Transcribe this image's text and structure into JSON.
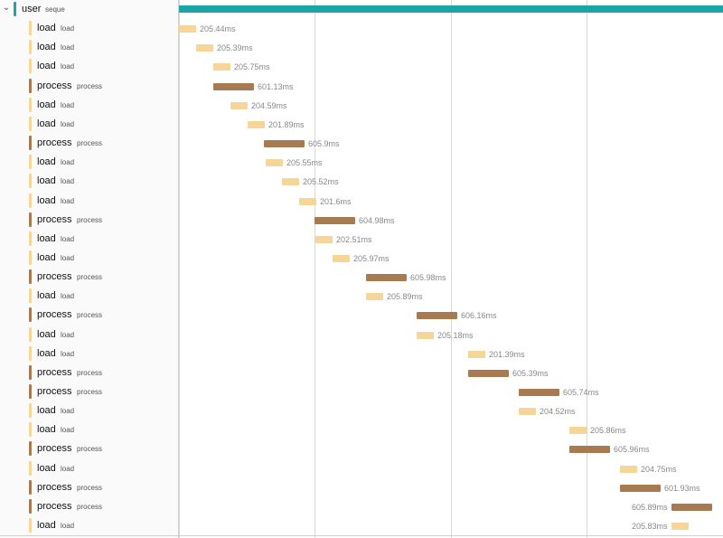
{
  "colors": {
    "user": "#1aa6a6",
    "load": "#f5d598",
    "process": "#a77a52",
    "panel_bg": "#fafafa",
    "grid": "#d8d8d8",
    "duration_text": "#888888"
  },
  "icons": {
    "expand": "chevron-down-icon"
  },
  "timeline": {
    "total_ms": 8100
  },
  "spans": [
    {
      "service": "user",
      "operation": "seque",
      "kind": "user",
      "start_ms": 0,
      "duration_ms": 8100,
      "duration_label": "",
      "expandable": true
    },
    {
      "service": "load",
      "operation": "load",
      "kind": "load",
      "start_ms": 0,
      "duration_ms": 205.44,
      "duration_label": "205.44ms"
    },
    {
      "service": "load",
      "operation": "load",
      "kind": "load",
      "start_ms": 255,
      "duration_ms": 205.39,
      "duration_label": "205.39ms"
    },
    {
      "service": "load",
      "operation": "load",
      "kind": "load",
      "start_ms": 510,
      "duration_ms": 205.75,
      "duration_label": "205.75ms"
    },
    {
      "service": "process",
      "operation": "process",
      "kind": "process",
      "start_ms": 510,
      "duration_ms": 601.13,
      "duration_label": "601.13ms"
    },
    {
      "service": "load",
      "operation": "load",
      "kind": "load",
      "start_ms": 765,
      "duration_ms": 204.59,
      "duration_label": "204.59ms"
    },
    {
      "service": "load",
      "operation": "load",
      "kind": "load",
      "start_ms": 1020,
      "duration_ms": 201.89,
      "duration_label": "201.89ms"
    },
    {
      "service": "process",
      "operation": "process",
      "kind": "process",
      "start_ms": 1270,
      "duration_ms": 605.9,
      "duration_label": "605.9ms"
    },
    {
      "service": "load",
      "operation": "load",
      "kind": "load",
      "start_ms": 1285,
      "duration_ms": 205.55,
      "duration_label": "205.55ms"
    },
    {
      "service": "load",
      "operation": "load",
      "kind": "load",
      "start_ms": 1540,
      "duration_ms": 205.52,
      "duration_label": "205.52ms"
    },
    {
      "service": "load",
      "operation": "load",
      "kind": "load",
      "start_ms": 1795,
      "duration_ms": 201.6,
      "duration_label": "201.6ms"
    },
    {
      "service": "process",
      "operation": "process",
      "kind": "process",
      "start_ms": 2020,
      "duration_ms": 604.98,
      "duration_label": "604.98ms"
    },
    {
      "service": "load",
      "operation": "load",
      "kind": "load",
      "start_ms": 2030,
      "duration_ms": 202.51,
      "duration_label": "202.51ms"
    },
    {
      "service": "load",
      "operation": "load",
      "kind": "load",
      "start_ms": 2285,
      "duration_ms": 205.97,
      "duration_label": "205.97ms"
    },
    {
      "service": "process",
      "operation": "process",
      "kind": "process",
      "start_ms": 2780,
      "duration_ms": 605.98,
      "duration_label": "605.98ms"
    },
    {
      "service": "load",
      "operation": "load",
      "kind": "load",
      "start_ms": 2780,
      "duration_ms": 205.89,
      "duration_label": "205.89ms"
    },
    {
      "service": "process",
      "operation": "process",
      "kind": "process",
      "start_ms": 3540,
      "duration_ms": 606.16,
      "duration_label": "606.16ms"
    },
    {
      "service": "load",
      "operation": "load",
      "kind": "load",
      "start_ms": 3540,
      "duration_ms": 205.18,
      "duration_label": "205.18ms"
    },
    {
      "service": "load",
      "operation": "load",
      "kind": "load",
      "start_ms": 4300,
      "duration_ms": 201.39,
      "duration_label": "201.39ms"
    },
    {
      "service": "process",
      "operation": "process",
      "kind": "process",
      "start_ms": 4300,
      "duration_ms": 605.39,
      "duration_label": "605.39ms"
    },
    {
      "service": "process",
      "operation": "process",
      "kind": "process",
      "start_ms": 5055,
      "duration_ms": 605.74,
      "duration_label": "605.74ms"
    },
    {
      "service": "load",
      "operation": "load",
      "kind": "load",
      "start_ms": 5055,
      "duration_ms": 204.52,
      "duration_label": "204.52ms"
    },
    {
      "service": "load",
      "operation": "load",
      "kind": "load",
      "start_ms": 5815,
      "duration_ms": 205.86,
      "duration_label": "205.86ms"
    },
    {
      "service": "process",
      "operation": "process",
      "kind": "process",
      "start_ms": 5815,
      "duration_ms": 605.96,
      "duration_label": "605.96ms"
    },
    {
      "service": "load",
      "operation": "load",
      "kind": "load",
      "start_ms": 6570,
      "duration_ms": 204.75,
      "duration_label": "204.75ms"
    },
    {
      "service": "process",
      "operation": "process",
      "kind": "process",
      "start_ms": 6570,
      "duration_ms": 601.93,
      "duration_label": "601.93ms"
    },
    {
      "service": "process",
      "operation": "process",
      "kind": "process",
      "start_ms": 7330,
      "duration_ms": 605.89,
      "duration_label": "605.89ms"
    },
    {
      "service": "load",
      "operation": "load",
      "kind": "load",
      "start_ms": 7330,
      "duration_ms": 205.83,
      "duration_label": "205.83ms"
    }
  ]
}
